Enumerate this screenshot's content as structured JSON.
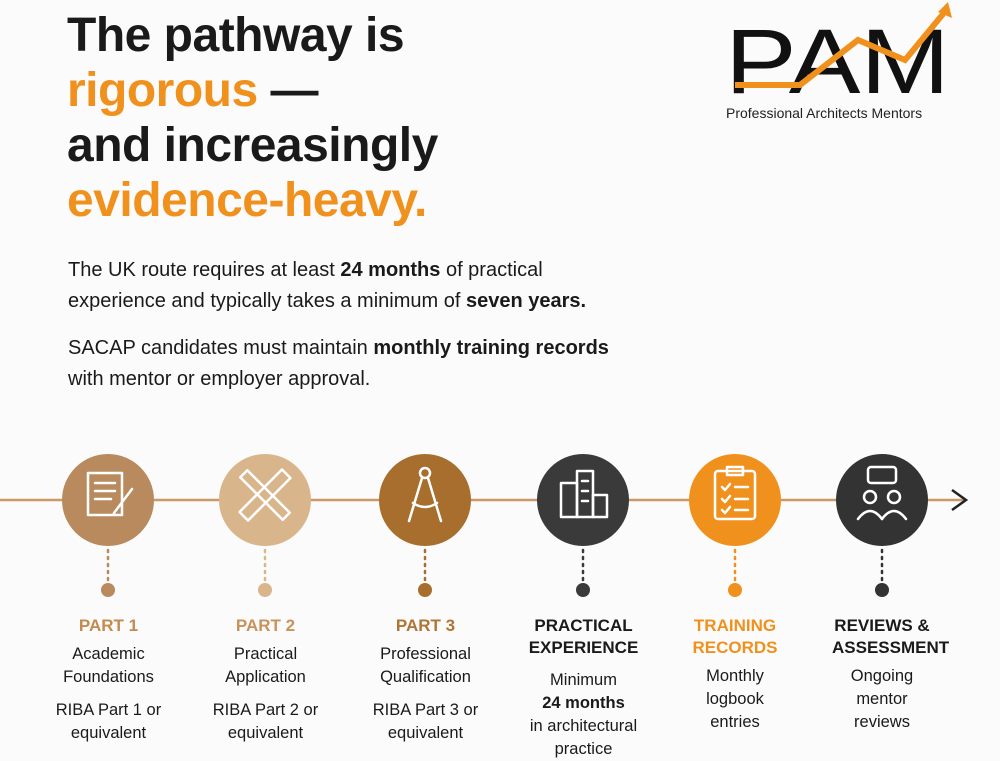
{
  "header": {
    "lines": [
      [
        {
          "text": "The pathway is"
        }
      ],
      [
        {
          "text": "rigorous",
          "accent": true
        },
        {
          "text": " —"
        }
      ],
      [
        {
          "text": "and increasingly"
        }
      ],
      [
        {
          "text": "evidence-heavy.",
          "accent": true
        }
      ]
    ]
  },
  "logo": {
    "text": "PAM",
    "tagline": "Professional Architects Mentors"
  },
  "paragraphs": [
    [
      {
        "text": "The UK route requires at least "
      },
      {
        "text": "24 months",
        "bold": true
      },
      {
        "text": " of practical experience and typically takes a minimum of "
      },
      {
        "text": "seven years.",
        "bold": true
      }
    ],
    [
      {
        "text": "SACAP candidates must maintain "
      },
      {
        "text": "monthly training records",
        "bold": true
      },
      {
        "text": " with mentor or employer approval."
      }
    ]
  ],
  "steps": [
    {
      "title": "PART 1",
      "subtitle": "Academic Foundations",
      "detail": "RIBA Part 1 or equivalent",
      "color": "#b98a5e",
      "title_color": "#c48a4e"
    },
    {
      "title": "PART 2",
      "subtitle": "Practical Application",
      "detail": "RIBA Part 2 or equivalent",
      "color": "#d9b58c",
      "title_color": "#c9925a"
    },
    {
      "title": "PART 3",
      "subtitle": "Professional Qualification",
      "detail": "RIBA Part 3 or equivalent",
      "color": "#a86e2e",
      "title_color": "#b07434"
    },
    {
      "title": "PRACTICAL EXPERIENCE",
      "note": "Minimum",
      "highlight": "24 months",
      "detail": "in architectural practice",
      "color": "#3a3a3a",
      "title_color": "#1a1a1a"
    },
    {
      "title": "TRAINING RECORDS",
      "subtitle": "Monthly logbook entries",
      "color": "#f0911e",
      "title_color": "#f0911e"
    },
    {
      "title": "REVIEWS & ASSESSMENT",
      "subtitle": "Ongoing mentor reviews",
      "color": "#333333",
      "title_color": "#1a1a1a"
    }
  ]
}
